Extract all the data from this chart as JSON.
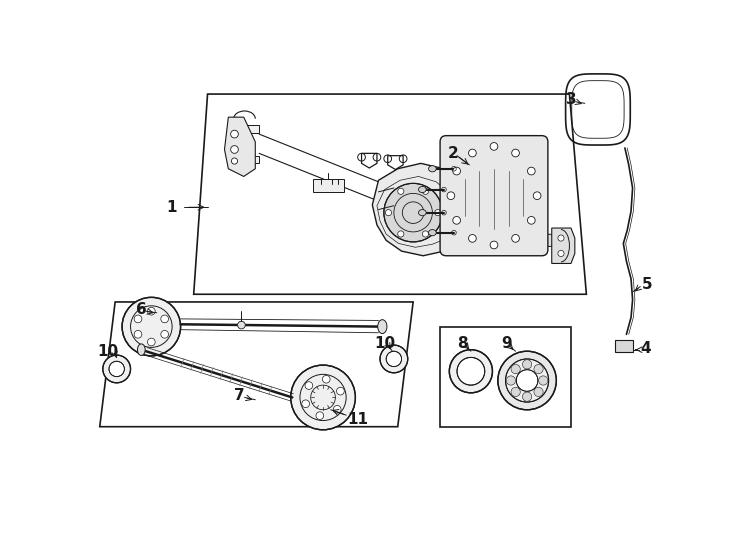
{
  "bg_color": "#ffffff",
  "lc": "#1a1a1a",
  "lw": 0.8,
  "fig_w": 7.34,
  "fig_h": 5.4,
  "dpi": 100
}
